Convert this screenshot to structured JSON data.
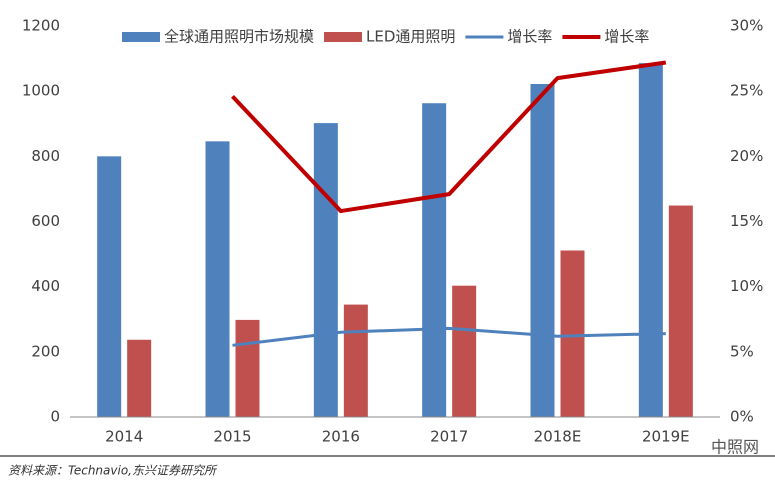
{
  "chart_data": {
    "type": "bar",
    "categories": [
      "2014",
      "2015",
      "2016",
      "2017",
      "2018E",
      "2019E"
    ],
    "series": [
      {
        "name": "全球通用照明市场规模",
        "color": "#4f81bd",
        "type": "bar",
        "values": [
          800,
          846,
          902,
          963,
          1022,
          1086
        ]
      },
      {
        "name": "LED通用照明",
        "color": "#c0504d",
        "type": "bar",
        "values": [
          237,
          298,
          345,
          403,
          511,
          649
        ]
      },
      {
        "name": "增长率",
        "color": "#4f81bd",
        "type": "line",
        "axis": "y2",
        "values": [
          null,
          5.5,
          6.5,
          6.8,
          6.2,
          6.4
        ]
      },
      {
        "name": "增长率",
        "color": "#c00000",
        "type": "line",
        "axis": "y2",
        "values": [
          null,
          24.6,
          15.8,
          17.1,
          26.0,
          27.2
        ]
      }
    ],
    "ylim": [
      0,
      1200
    ],
    "yticks": [
      0,
      200,
      400,
      600,
      800,
      1000,
      1200
    ],
    "y2lim": [
      0,
      30
    ],
    "y2ticks": [
      {
        "value": 0,
        "label": "0%"
      },
      {
        "value": 5,
        "label": "5%"
      },
      {
        "value": 10,
        "label": "10%"
      },
      {
        "value": 15,
        "label": "15%"
      },
      {
        "value": 20,
        "label": "20%"
      },
      {
        "value": 25,
        "label": "25%"
      },
      {
        "value": 30,
        "label": "30%"
      }
    ],
    "grid": false,
    "legend": "top",
    "source": "资料来源：Technavio,东兴证券研究所",
    "watermark": "中照网"
  }
}
